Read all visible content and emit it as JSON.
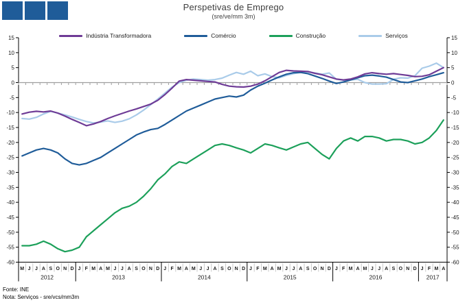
{
  "header": {
    "title": "Perspetivas de Emprego",
    "subtitle": "(sre/ve/mm 3m)"
  },
  "footer": {
    "source": "Fonte: INE",
    "note": "Nota: Serviços - sre/vcs/mm3m"
  },
  "logo": {
    "name": "three-blue-squares-logo",
    "color": "#1F5C99",
    "square_count": 3
  },
  "colors": {
    "axis": "#000000",
    "zero_line": "#9E9E9E",
    "month_separator": "#C9C9C9",
    "text": "#1A1A1A"
  },
  "chart_data": {
    "type": "line",
    "title": "Perspetivas de Emprego",
    "subtitle": "(sre/ve/mm 3m)",
    "ylim": [
      -60,
      15
    ],
    "ytick_step": 5,
    "yticks": [
      15,
      10,
      5,
      0,
      -5,
      -10,
      -15,
      -20,
      -25,
      -30,
      -35,
      -40,
      -45,
      -50,
      -55,
      -60
    ],
    "grid": "zero-line-only",
    "legend_position": "top",
    "categories": [
      "M",
      "J",
      "J",
      "A",
      "S",
      "O",
      "N",
      "D",
      "J",
      "F",
      "M",
      "A",
      "M",
      "J",
      "J",
      "A",
      "S",
      "O",
      "N",
      "D",
      "J",
      "F",
      "M",
      "A",
      "M",
      "J",
      "J",
      "A",
      "S",
      "O",
      "N",
      "D",
      "J",
      "F",
      "M",
      "A",
      "M",
      "J",
      "J",
      "A",
      "S",
      "O",
      "N",
      "D",
      "J",
      "F",
      "M",
      "A",
      "M",
      "J",
      "J",
      "A",
      "S",
      "O",
      "N",
      "D",
      "J",
      "F",
      "M",
      "A"
    ],
    "years": [
      {
        "label": "2012",
        "start": 0,
        "count": 8
      },
      {
        "label": "2013",
        "start": 8,
        "count": 12
      },
      {
        "label": "2014",
        "start": 20,
        "count": 12
      },
      {
        "label": "2015",
        "start": 32,
        "count": 12
      },
      {
        "label": "2016",
        "start": 44,
        "count": 12
      },
      {
        "label": "2017",
        "start": 56,
        "count": 4
      }
    ],
    "series": [
      {
        "name": "Indústria Transformadora",
        "color": "#6E3B96",
        "values": [
          -10.5,
          -9.9,
          -9.6,
          -9.8,
          -9.5,
          -10.2,
          -11.2,
          -12.3,
          -13.3,
          -14.4,
          -13.8,
          -13,
          -12,
          -11.1,
          -10.3,
          -9.5,
          -8.8,
          -8,
          -7.2,
          -5.9,
          -4,
          -1.8,
          0.5,
          1,
          0.8,
          0.6,
          0.4,
          0.2,
          -0.6,
          -1.2,
          -1.4,
          -1.5,
          -1.2,
          -0.5,
          0.6,
          2,
          3.4,
          4.1,
          3.9,
          3.8,
          3.7,
          3.1,
          2.6,
          1.9,
          1.2,
          0.9,
          1.2,
          1.9,
          2.9,
          3.3,
          3,
          2.8,
          3,
          2.7,
          2.4,
          2,
          2.1,
          2.6,
          3.8,
          5
        ]
      },
      {
        "name": "Comércio",
        "color": "#1F5C99",
        "values": [
          -24.5,
          -23.5,
          -22.5,
          -22,
          -22.5,
          -23.5,
          -25.5,
          -27,
          -27.5,
          -27,
          -26,
          -25,
          -23.5,
          -22,
          -20.5,
          -19,
          -17.5,
          -16.5,
          -15.7,
          -15.3,
          -14,
          -12.5,
          -11,
          -9.5,
          -8.5,
          -7.5,
          -6.5,
          -5.5,
          -5,
          -4.5,
          -4.8,
          -4.2,
          -2.5,
          -1.2,
          -0.2,
          0.9,
          1.9,
          2.8,
          3.3,
          3.4,
          3,
          2.2,
          1.4,
          0.5,
          -0.3,
          0.2,
          0.9,
          1.6,
          2.3,
          2.5,
          2.2,
          1.8,
          1,
          0.2,
          0,
          0.6,
          1.2,
          2,
          2.6,
          3.3
        ]
      },
      {
        "name": "Construção",
        "color": "#1CA05A",
        "values": [
          -54.5,
          -54.5,
          -54,
          -53,
          -54,
          -55.5,
          -56.5,
          -56,
          -55,
          -51.5,
          -49.5,
          -47.5,
          -45.5,
          -43.5,
          -42,
          -41.3,
          -40,
          -38,
          -35.5,
          -32.5,
          -30.5,
          -28,
          -26.5,
          -27,
          -25.5,
          -24,
          -22.5,
          -21,
          -20.5,
          -21,
          -21.8,
          -22.5,
          -23.5,
          -22,
          -20.5,
          -21,
          -21.8,
          -22.5,
          -21.5,
          -20.5,
          -20,
          -22,
          -24,
          -25.5,
          -22,
          -19.5,
          -18.5,
          -19.5,
          -18,
          -18,
          -18.5,
          -19.5,
          -19,
          -19,
          -19.5,
          -20.5,
          -20,
          -18.5,
          -16,
          -12.5
        ]
      },
      {
        "name": "Serviços",
        "color": "#A9CBE9",
        "values": [
          -12,
          -12.2,
          -11.6,
          -10.5,
          -9.6,
          -10.2,
          -10.8,
          -11.5,
          -12.3,
          -13,
          -13.5,
          -13.2,
          -12.8,
          -13.3,
          -12.9,
          -12.1,
          -10.8,
          -9.2,
          -7.4,
          -5.5,
          -3.5,
          -1.5,
          0,
          0.8,
          1.2,
          1,
          0.8,
          1,
          1.5,
          2.5,
          3.4,
          2.8,
          3.8,
          2.3,
          2.9,
          2,
          1.6,
          2.4,
          3,
          3.4,
          3.6,
          3.2,
          2.8,
          3.2,
          1.1,
          0.8,
          0.9,
          1.1,
          0,
          -0.5,
          -0.5,
          -0.4,
          1.1,
          1.6,
          1.5,
          2.3,
          4.8,
          5.5,
          6.5,
          5
        ]
      }
    ]
  }
}
